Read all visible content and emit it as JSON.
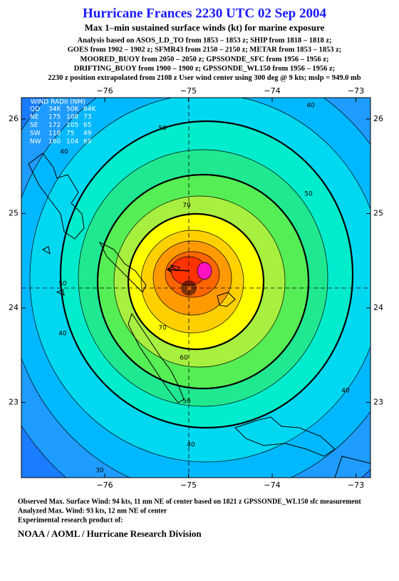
{
  "header": {
    "title": "Hurricane Frances 2230 UTC 02 Sep 2004",
    "subtitle": "Max 1–min sustained surface winds (kt) for marine exposure",
    "analysis_lines": [
      "Analysis based on  ASOS_LD_TO from 1853 – 1853 z;  SHIP from 1818 – 1818 z;",
      "GOES from 1902 – 1902 z;  SFMR43 from 2150 – 2150 z;  METAR from 1853 – 1853 z;",
      "MOORED_BUOY from 2050 – 2050 z;  GPSSONDE_SFC from 1956 – 1956 z;",
      "DRIFTING_BUOY from 1900 – 1900 z;  GPSSONDE_WL150 from 1956 – 1956 z;",
      "2230 z position extrapolated from 2108 z User wind center using 300 deg @ 9 kts; mslp = 949.0 mb"
    ]
  },
  "map": {
    "lon_ticks": [
      {
        "value": -76,
        "label": "−76"
      },
      {
        "value": -75,
        "label": "−75"
      },
      {
        "value": -74,
        "label": "−74"
      },
      {
        "value": -73,
        "label": "−73"
      }
    ],
    "lat_ticks": [
      26,
      25,
      24,
      23
    ],
    "wind_radii": {
      "title": "WIND RADII (NM)",
      "columns": [
        "QD",
        "34K",
        "50K",
        "64K"
      ],
      "rows": [
        [
          "NE",
          175,
          108,
          73
        ],
        [
          "SE",
          172,
          105,
          65
        ],
        [
          "SW",
          118,
          75,
          49
        ],
        [
          "NW",
          160,
          104,
          69
        ]
      ]
    },
    "contour_labels": [
      50,
      40,
      40,
      50,
      70,
      50,
      70,
      60,
      50,
      40,
      40,
      40,
      30
    ]
  },
  "footer": {
    "lines": [
      "Observed Max. Surface Wind: 94 kts, 11 nm NE of center based on 1821 z GPSSONDE_WL150 sfc measurement",
      "Analyzed Max. Wind: 93 kts, 12 nm NE of center",
      "Experimental research product of:"
    ],
    "credit": "NOAA / AOML / Hurricane Research Division"
  }
}
